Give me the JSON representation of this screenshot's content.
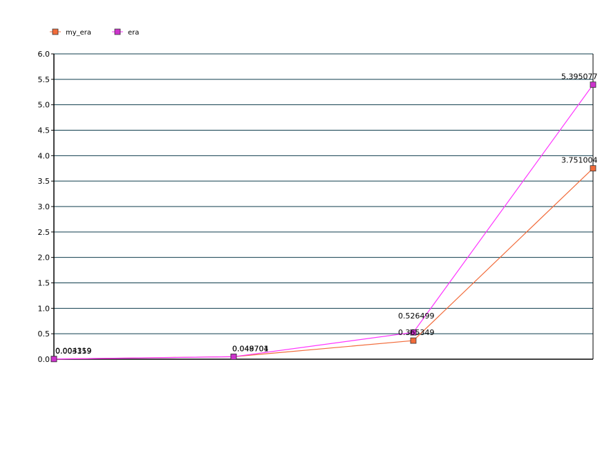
{
  "chart_data": {
    "type": "line",
    "x": [
      1,
      2,
      3,
      4
    ],
    "ylim": [
      0,
      6
    ],
    "yticks": [
      "0.0",
      "0.5",
      "1.0",
      "1.5",
      "2.0",
      "2.5",
      "3.0",
      "3.5",
      "4.0",
      "4.5",
      "5.0",
      "5.5",
      "6.0"
    ],
    "grid": true,
    "legend_position": "top-left",
    "series": [
      {
        "name": "my_era",
        "color": "#f26b3a",
        "marker_color": "#f26b3a",
        "values": [
          0.004319,
          0.049704,
          0.365349,
          3.751004
        ],
        "labels": [
          "0.004319",
          "0.049704",
          "0.365349",
          "3.751004"
        ]
      },
      {
        "name": "era",
        "color": "#ff33ff",
        "marker_color": "#cc33cc",
        "values": [
          0.003159,
          0.048701,
          0.526499,
          5.395077
        ],
        "labels": [
          "0.003159",
          "0.048701",
          "0.526499",
          "5.395077"
        ]
      }
    ]
  }
}
